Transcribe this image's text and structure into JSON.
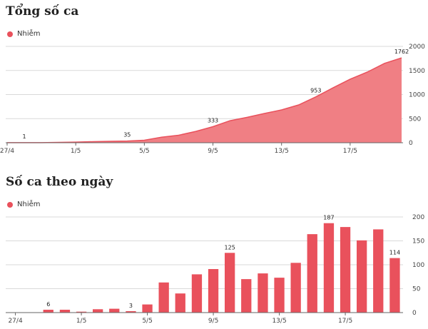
{
  "chart_data": [
    {
      "type": "area",
      "title": "Tổng số ca",
      "legend": [
        {
          "name": "Nhiễm",
          "color": "#e9515c"
        }
      ],
      "ylim": [
        0,
        2000
      ],
      "yticks": [
        "0",
        "500",
        "1000",
        "1500",
        "2000"
      ],
      "grid": true,
      "xticks": [
        {
          "index": 0,
          "label": "27/4"
        },
        {
          "index": 4,
          "label": "1/5"
        },
        {
          "index": 8,
          "label": "5/5"
        },
        {
          "index": 12,
          "label": "9/5"
        },
        {
          "index": 16,
          "label": "13/5"
        },
        {
          "index": 20,
          "label": "17/5"
        }
      ],
      "series": [
        {
          "name": "Nhiễm",
          "color": "#f07f84",
          "values": [
            1,
            1,
            1,
            7,
            14,
            22,
            30,
            35,
            52,
            115,
            155,
            236,
            333,
            458,
            528,
            607,
            681,
            785,
            953,
            1140,
            1320,
            1467,
            1648,
            1762
          ]
        }
      ],
      "data_labels": [
        {
          "index": 1,
          "label": "1"
        },
        {
          "index": 7,
          "label": "35"
        },
        {
          "index": 12,
          "label": "333"
        },
        {
          "index": 18,
          "label": "953"
        },
        {
          "index": 23,
          "label": "1762"
        }
      ]
    },
    {
      "type": "bar",
      "title": "Số ca theo ngày",
      "legend": [
        {
          "name": "Nhiễm",
          "color": "#e9515c"
        }
      ],
      "ylim": [
        0,
        200
      ],
      "yticks": [
        "0",
        "50",
        "100",
        "150",
        "200"
      ],
      "grid": true,
      "xticks": [
        {
          "index": 0,
          "label": "27/4"
        },
        {
          "index": 4,
          "label": "1/5"
        },
        {
          "index": 8,
          "label": "5/5"
        },
        {
          "index": 12,
          "label": "9/5"
        },
        {
          "index": 16,
          "label": "13/5"
        },
        {
          "index": 20,
          "label": "17/5"
        }
      ],
      "series": [
        {
          "name": "Nhiễm",
          "color": "#e9515c",
          "values": [
            0,
            0,
            6,
            6,
            2,
            7,
            8,
            3,
            17,
            63,
            40,
            80,
            91,
            125,
            70,
            82,
            73,
            104,
            164,
            187,
            179,
            151,
            174,
            114
          ]
        }
      ],
      "data_labels": [
        {
          "index": 2,
          "label": "6"
        },
        {
          "index": 7,
          "label": "3"
        },
        {
          "index": 13,
          "label": "125"
        },
        {
          "index": 19,
          "label": "187"
        },
        {
          "index": 23,
          "label": "114"
        }
      ]
    }
  ]
}
